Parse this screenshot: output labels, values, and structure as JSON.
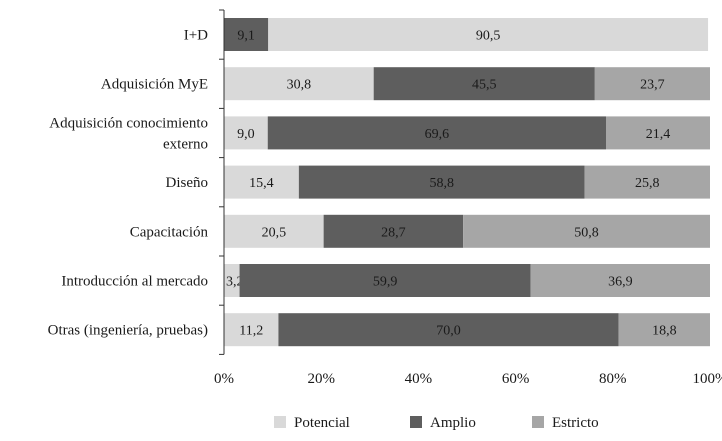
{
  "chart_data": {
    "type": "bar",
    "orientation": "horizontal",
    "stacked": true,
    "percent": true,
    "categories": [
      [
        "I+D"
      ],
      [
        "Adquisición MyE"
      ],
      [
        "Adquisición conocimiento",
        "externo"
      ],
      [
        "Diseño"
      ],
      [
        "Capacitación"
      ],
      [
        "Introducción al mercado"
      ],
      [
        "Otras (ingeniería, pruebas)"
      ]
    ],
    "series": [
      {
        "name": "Potencial",
        "color": "#d9d9d9",
        "label_color": "#1a1a1a",
        "values": [
          0,
          30.8,
          9.0,
          15.4,
          20.5,
          3.2,
          11.2
        ],
        "labels": [
          "",
          "30,8",
          "9,0",
          "15,4",
          "20,5",
          "3,2",
          "11,2"
        ]
      },
      {
        "name": "Amplio",
        "color": "#5e5e5e",
        "label_color": "#1a1a1a",
        "values": [
          9.1,
          45.5,
          69.6,
          58.8,
          28.7,
          59.9,
          70.0
        ],
        "labels": [
          "9,1",
          "45,5",
          "69,6",
          "58,8",
          "28,7",
          "59,9",
          "70,0"
        ]
      },
      {
        "name": "Estricto",
        "color": "#a6a6a6",
        "label_color": "#1a1a1a",
        "values": [
          0,
          23.7,
          21.4,
          25.8,
          50.8,
          36.9,
          18.8
        ],
        "labels": [
          "",
          "23,7",
          "21,4",
          "25,8",
          "50,8",
          "36,9",
          "18,8"
        ]
      }
    ],
    "extra_segments": [
      {
        "category_index": 0,
        "color": "#d9d9d9",
        "value": 90.5,
        "label": "90,5"
      }
    ],
    "xaxis": {
      "ticks": [
        0,
        20,
        40,
        60,
        80,
        100
      ],
      "tick_labels": [
        "0%",
        "20%",
        "40%",
        "60%",
        "80%",
        "100%"
      ],
      "range": [
        0,
        100
      ]
    },
    "grid": false,
    "legend": {
      "position": "bottom"
    }
  }
}
